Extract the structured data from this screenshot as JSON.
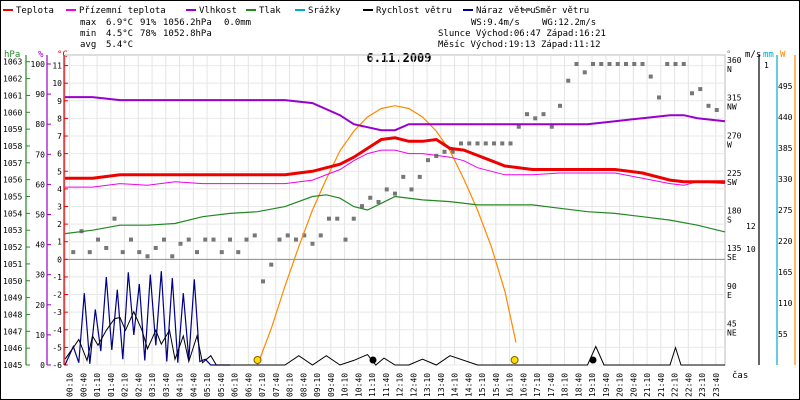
{
  "chart_data": {
    "type": "line",
    "title": "6.11.2009",
    "xlabel": "čas",
    "legend": [
      {
        "key": "temp",
        "label": "Teplota",
        "color": "#ee0000"
      },
      {
        "key": "feels",
        "label": "Přízemní teplota",
        "color": "#ee00ee"
      },
      {
        "key": "hum",
        "label": "Vlhkost",
        "color": "#9900cc"
      },
      {
        "key": "press",
        "label": "Tlak",
        "color": "#228822"
      },
      {
        "key": "rain",
        "label": "Srážky",
        "color": "#00aacc"
      },
      {
        "key": "wind",
        "label": "Rychlost větru",
        "color": "#000000"
      },
      {
        "key": "gust",
        "label": "Náraz větru",
        "color": "#000088"
      },
      {
        "key": "dir",
        "label": "Směr větru",
        "color": "#808080"
      }
    ],
    "stats": {
      "max_label": "max",
      "max_temp": "6.9°C",
      "max_hum": "91%",
      "max_press": "1056.2hPa",
      "max_rain": "0.0mm",
      "min_label": "min",
      "min_temp": "4.5°C",
      "min_hum": "78%",
      "min_press": "1052.8hPa",
      "avg_label": "avg",
      "avg_temp": "5.4°C",
      "ws": "WS:9.4m/s",
      "wg": "WG:12.2m/s",
      "sun": "Slunce Východ:06:47  Západ:16:21",
      "moon": "Měsíc  Východ:19:13  Západ:11:12"
    },
    "axes": {
      "hpa_title": "hPa",
      "pct_title": "%",
      "c_title": "°C",
      "deg_title": "°",
      "ms_title": "m/s",
      "mm_title": "mm",
      "w_title": "W",
      "hpa": [
        "1045",
        "1046",
        "1047",
        "1048",
        "1049",
        "1050",
        "1051",
        "1052",
        "1053",
        "1054",
        "1055",
        "1056",
        "1057",
        "1058",
        "1059",
        "1060",
        "1061",
        "1062",
        "1063"
      ],
      "pct": [
        "0",
        "10",
        "20",
        "30",
        "40",
        "50",
        "60",
        "70",
        "80",
        "90",
        "100"
      ],
      "c": [
        "-6",
        "-5",
        "-4",
        "-3",
        "-2",
        "-1",
        "0",
        "1",
        "2",
        "3",
        "4",
        "5",
        "6",
        "7",
        "8",
        "9",
        "10",
        "11"
      ],
      "deg": [
        [
          "360",
          "N"
        ],
        [
          "315",
          "NW"
        ],
        [
          "270",
          "W"
        ],
        [
          "225",
          "SW"
        ],
        [
          "180",
          "S"
        ],
        [
          "135",
          "SE"
        ],
        [
          "90",
          "E"
        ],
        [
          "45",
          "NE"
        ]
      ],
      "ms": [
        "10",
        "12"
      ],
      "mm": [
        "1"
      ],
      "w": [
        "55",
        "110",
        "165",
        "220",
        "275",
        "330",
        "385",
        "440",
        "495"
      ],
      "hours": [
        "00:10",
        "00:40",
        "01:10",
        "01:40",
        "02:10",
        "02:40",
        "03:10",
        "03:40",
        "04:10",
        "04:40",
        "05:10",
        "05:40",
        "06:10",
        "06:40",
        "07:10",
        "07:40",
        "08:10",
        "08:40",
        "09:10",
        "09:40",
        "10:10",
        "10:40",
        "11:10",
        "11:40",
        "12:10",
        "12:40",
        "13:10",
        "13:40",
        "14:10",
        "14:40",
        "15:10",
        "15:40",
        "16:10",
        "16:40",
        "17:10",
        "17:40",
        "18:10",
        "18:40",
        "19:10",
        "19:40",
        "20:10",
        "20:40",
        "21:10",
        "21:40",
        "22:10",
        "22:40",
        "23:10",
        "23:40"
      ]
    },
    "series": [
      {
        "key": "temp",
        "name": "Teplota",
        "unit": "°C",
        "x": [
          0,
          1,
          2,
          3,
          4,
          5,
          6,
          7,
          8,
          9,
          10,
          10.5,
          11,
          11.5,
          12,
          12.5,
          13,
          13.5,
          14,
          14.5,
          15,
          15.5,
          16,
          17,
          18,
          19,
          20,
          21,
          22,
          22.5,
          23,
          24
        ],
        "y": [
          4.6,
          4.6,
          4.8,
          4.8,
          4.8,
          4.8,
          4.8,
          4.8,
          4.8,
          5.0,
          5.4,
          5.8,
          6.3,
          6.8,
          6.9,
          6.7,
          6.7,
          6.8,
          6.3,
          6.2,
          5.9,
          5.6,
          5.3,
          5.1,
          5.1,
          5.1,
          5.1,
          4.9,
          4.5,
          4.4,
          4.4,
          4.4
        ]
      },
      {
        "key": "feels",
        "name": "Přízemní teplota",
        "unit": "°C",
        "x": [
          0,
          1,
          2,
          3,
          4,
          5,
          6,
          7,
          8,
          9,
          10,
          10.5,
          11,
          11.5,
          12,
          12.5,
          13,
          13.5,
          14,
          14.5,
          15,
          15.5,
          16,
          17,
          18,
          19,
          20,
          21,
          22,
          22.5,
          23,
          24
        ],
        "y": [
          4.1,
          4.1,
          4.3,
          4.2,
          4.4,
          4.3,
          4.3,
          4.3,
          4.3,
          4.5,
          5.1,
          5.6,
          6.0,
          6.2,
          6.2,
          6.0,
          6.0,
          5.9,
          5.8,
          5.6,
          5.2,
          5.0,
          4.8,
          4.8,
          4.9,
          4.9,
          4.9,
          4.6,
          4.3,
          4.2,
          4.4,
          4.3
        ]
      },
      {
        "key": "hum",
        "name": "Vlhkost",
        "unit": "%",
        "x": [
          0,
          1,
          2,
          3,
          4,
          5,
          6,
          7,
          8,
          9,
          10,
          10.5,
          11,
          11.5,
          12,
          12.5,
          13,
          14,
          15,
          16,
          17,
          18,
          19,
          20,
          21,
          22,
          22.5,
          23,
          24
        ],
        "y": [
          89,
          89,
          88,
          88,
          88,
          88,
          88,
          88,
          88,
          87,
          83,
          80,
          79,
          78,
          78,
          80,
          80,
          80,
          80,
          80,
          80,
          80,
          80,
          81,
          82,
          83,
          83,
          82,
          81
        ]
      },
      {
        "key": "press",
        "name": "Tlak",
        "unit": "hPa",
        "x": [
          0,
          1,
          2,
          3,
          4,
          5,
          6,
          7,
          8,
          9,
          9.5,
          10,
          10.5,
          11,
          11.5,
          12,
          13,
          14,
          15,
          16,
          17,
          18,
          19,
          20,
          21,
          22,
          23,
          24
        ],
        "y": [
          1052.8,
          1053.0,
          1053.3,
          1053.3,
          1053.4,
          1053.8,
          1054.0,
          1054.1,
          1054.4,
          1055.0,
          1055.1,
          1054.9,
          1054.4,
          1054.2,
          1054.6,
          1055.0,
          1054.8,
          1054.7,
          1054.5,
          1054.5,
          1054.5,
          1054.3,
          1054.1,
          1054.0,
          1053.8,
          1053.6,
          1053.3,
          1052.9
        ]
      },
      {
        "key": "wind",
        "name": "Rychlost větru",
        "unit": "m/s",
        "x": [
          0,
          0.3,
          0.5,
          0.8,
          1,
          1.2,
          1.5,
          1.8,
          2,
          2.2,
          2.5,
          2.8,
          3,
          3.3,
          3.5,
          3.8,
          4,
          4.3,
          4.5,
          4.8,
          5,
          5.3,
          5.5,
          6,
          6.5,
          7,
          7.3,
          7.6,
          8,
          8.5,
          9,
          9.5,
          10,
          10.5,
          11,
          11.3,
          11.6,
          12,
          12.5,
          13,
          13.5,
          14,
          15,
          16,
          17,
          18,
          19,
          19.3,
          19.6,
          20,
          21,
          22,
          22.2,
          22.4,
          23,
          24
        ],
        "y": [
          0.5,
          1.5,
          2.2,
          0.4,
          2.5,
          1.7,
          3.0,
          4.0,
          4.1,
          3.0,
          4.6,
          3.0,
          1.4,
          3.0,
          1.8,
          3.0,
          0.5,
          2.5,
          0.3,
          2.5,
          0.2,
          0.8,
          0,
          0,
          0,
          0,
          0,
          0,
          0,
          0.8,
          0,
          0.8,
          0,
          0.4,
          0.9,
          0,
          0.6,
          0,
          0,
          0.5,
          0,
          0.8,
          0,
          0,
          0,
          0,
          0,
          1.6,
          0,
          0,
          0,
          0,
          1.5,
          0,
          0,
          0
        ]
      },
      {
        "key": "gust",
        "name": "Náraz větru",
        "unit": "m/s",
        "x": [
          0,
          0.3,
          0.5,
          0.7,
          0.9,
          1.1,
          1.3,
          1.5,
          1.7,
          1.9,
          2.1,
          2.3,
          2.5,
          2.7,
          2.9,
          3.1,
          3.3,
          3.5,
          3.7,
          3.9,
          4.1,
          4.3,
          4.5,
          4.7,
          4.9,
          5.1,
          5.3,
          6
        ],
        "y": [
          0,
          1.6,
          0.2,
          6.2,
          0.1,
          4.8,
          1.2,
          7.6,
          1.3,
          6.5,
          0.5,
          8.0,
          2.6,
          7.0,
          0.4,
          7.8,
          1.7,
          8.1,
          0.3,
          7.5,
          0.2,
          6.2,
          0.5,
          7.4,
          0.3,
          0.5,
          0,
          0
        ]
      },
      {
        "key": "solar",
        "name": "Sluneční záření",
        "unit": "W",
        "x": [
          7.0,
          7.5,
          8,
          8.5,
          9,
          9.5,
          10,
          10.5,
          11,
          11.5,
          12,
          12.5,
          13,
          13.5,
          14,
          14.5,
          15,
          15.5,
          16,
          16.4
        ],
        "y": [
          0,
          65,
          140,
          210,
          275,
          330,
          380,
          415,
          440,
          455,
          460,
          455,
          440,
          415,
          380,
          330,
          275,
          210,
          130,
          40
        ]
      },
      {
        "key": "dir",
        "name": "Směr větru",
        "unit": "°",
        "x": [
          0.3,
          0.6,
          0.9,
          1.2,
          1.5,
          1.8,
          2.1,
          2.4,
          2.7,
          3.0,
          3.3,
          3.6,
          3.9,
          4.2,
          4.5,
          4.8,
          5.1,
          5.4,
          5.7,
          6.0,
          6.3,
          6.6,
          6.9,
          7.2,
          7.5,
          7.8,
          8.1,
          8.4,
          8.7,
          9.0,
          9.3,
          9.6,
          9.9,
          10.2,
          10.5,
          10.8,
          11.1,
          11.4,
          11.7,
          12.0,
          12.3,
          12.6,
          12.9,
          13.2,
          13.5,
          13.8,
          14.1,
          14.4,
          14.7,
          15.0,
          15.3,
          15.6,
          15.9,
          16.2,
          16.5,
          16.8,
          17.1,
          17.4,
          17.7,
          18.0,
          18.3,
          18.6,
          18.9,
          19.2,
          19.5,
          19.8,
          20.1,
          20.4,
          20.7,
          21.0,
          21.3,
          21.6,
          21.9,
          22.2,
          22.5,
          22.8,
          23.1,
          23.4,
          23.7
        ],
        "y": [
          135,
          160,
          135,
          150,
          140,
          175,
          135,
          150,
          135,
          130,
          140,
          150,
          130,
          145,
          150,
          135,
          150,
          150,
          135,
          150,
          135,
          150,
          155,
          100,
          120,
          150,
          155,
          150,
          155,
          145,
          155,
          175,
          175,
          150,
          175,
          190,
          200,
          195,
          210,
          205,
          225,
          210,
          225,
          245,
          250,
          255,
          255,
          265,
          265,
          265,
          265,
          265,
          265,
          265,
          285,
          300,
          295,
          300,
          285,
          310,
          340,
          360,
          350,
          360,
          360,
          360,
          360,
          360,
          360,
          360,
          345,
          320,
          360,
          360,
          360,
          325,
          330,
          310,
          305
        ]
      }
    ]
  }
}
